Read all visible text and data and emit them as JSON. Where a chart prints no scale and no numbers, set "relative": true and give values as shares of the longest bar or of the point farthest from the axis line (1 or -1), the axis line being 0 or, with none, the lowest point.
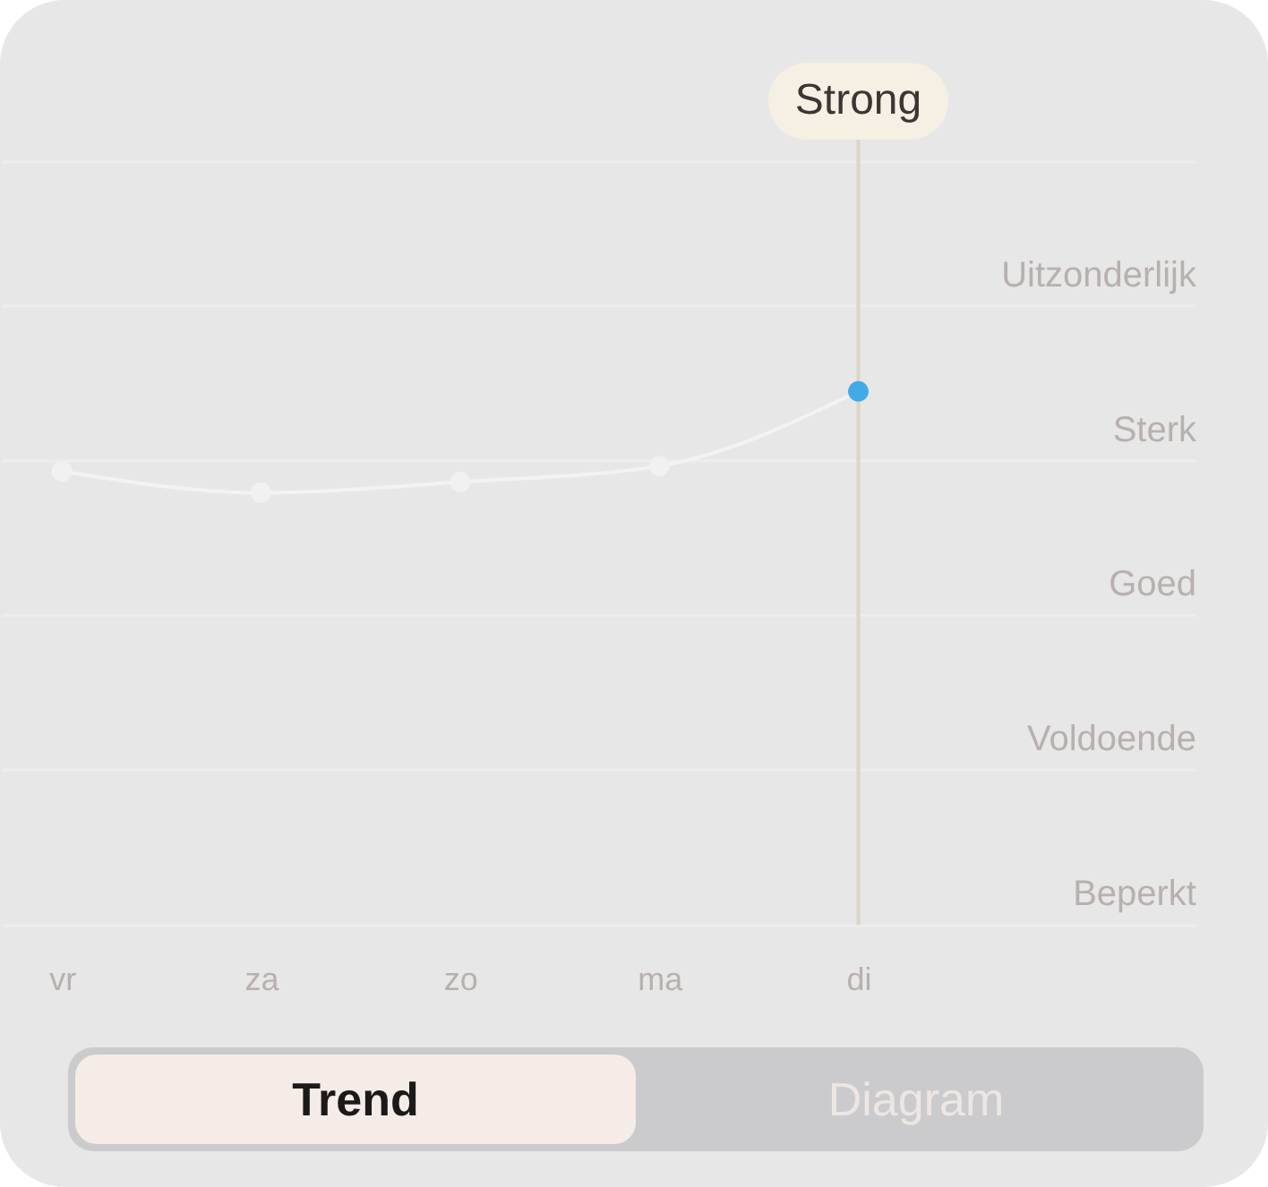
{
  "chart_data": {
    "type": "line",
    "relative": true,
    "categories": [
      "vr",
      "za",
      "zo",
      "ma",
      "di"
    ],
    "series": [
      {
        "color": "#f3f3f3",
        "colors": [
          "#f1f1f1",
          "#f1f1f1",
          "#f1f1f1",
          "#f1f1f1",
          "#42aae6"
        ],
        "values": [
          0.85,
          0.81,
          0.83,
          0.86,
          1
        ]
      }
    ],
    "marker": "circle",
    "ref_lines": [
      {
        "axis": "y",
        "value": 0.29,
        "label": "Voldoende",
        "color": "#ededed"
      },
      {
        "axis": "y",
        "value": 0.58,
        "label": "Goed",
        "color": "#ededed"
      },
      {
        "axis": "y",
        "value": 0.87,
        "label": "Sterk",
        "color": "#ededed"
      },
      {
        "axis": "y",
        "value": 1.16,
        "label": "Uitzonderlijk",
        "color": "#ededed"
      },
      {
        "axis": "y",
        "value": 1.43,
        "color": "#ededed"
      },
      {
        "axis": "x",
        "value": "di",
        "label": "Strong",
        "color": "#ddd4c6"
      }
    ],
    "annotations": [
      "Beperkt",
      "Trend",
      "Diagram"
    ]
  }
}
